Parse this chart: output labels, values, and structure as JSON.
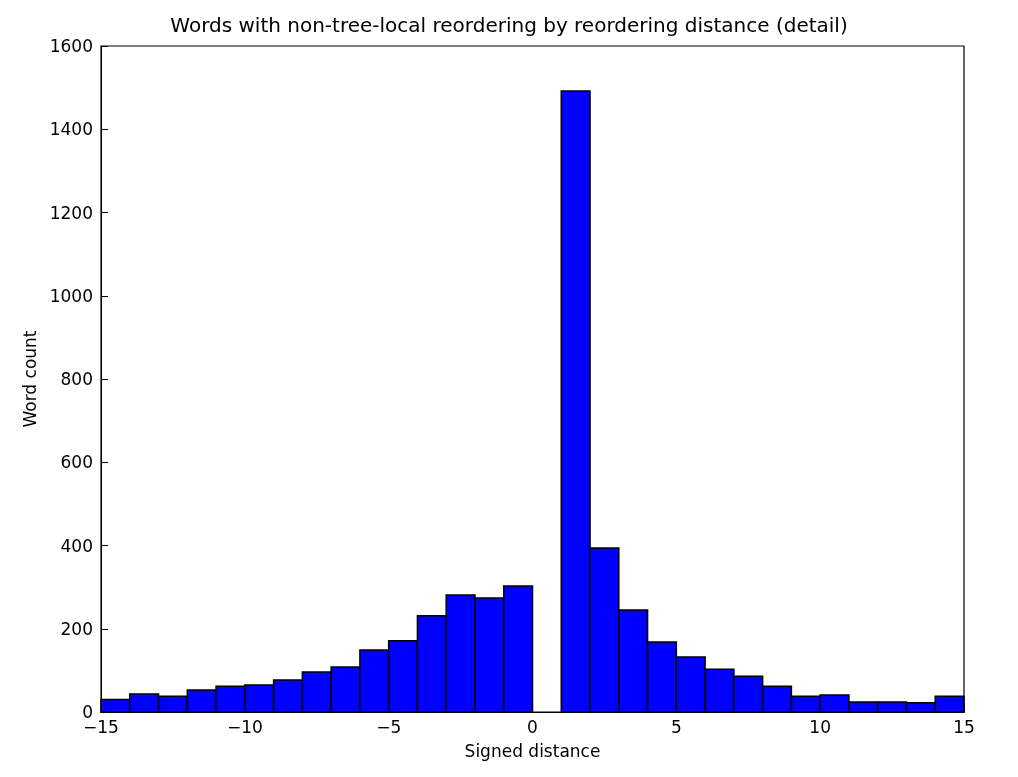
{
  "chart_data": {
    "type": "histogram",
    "title": "Words with non-tree-local reordering by reordering distance (detail)",
    "xlabel": "Signed distance",
    "ylabel": "Word count",
    "bins": [
      -15,
      -14,
      -13,
      -12,
      -11,
      -10,
      -9,
      -8,
      -7,
      -6,
      -5,
      -4,
      -3,
      -2,
      -1,
      0,
      1,
      2,
      3,
      4,
      5,
      6,
      7,
      8,
      9,
      10,
      11,
      12,
      13,
      14,
      15
    ],
    "values": [
      30,
      43,
      38,
      53,
      62,
      65,
      77,
      96,
      108,
      149,
      171,
      231,
      281,
      274,
      303,
      0,
      1492,
      394,
      245,
      168,
      132,
      103,
      86,
      62,
      38,
      41,
      24,
      24,
      22,
      38
    ],
    "color": "#0000ff",
    "xlim": [
      -15,
      15
    ],
    "xticks": [
      {
        "value": -15,
        "label": "−15"
      },
      {
        "value": -10,
        "label": "−10"
      },
      {
        "value": -5,
        "label": "−5"
      },
      0,
      5,
      10,
      15
    ],
    "ylim": [
      0,
      1600
    ],
    "yticks": [
      0,
      200,
      400,
      600,
      800,
      1000,
      1200,
      1400,
      1600
    ],
    "grid": false
  }
}
